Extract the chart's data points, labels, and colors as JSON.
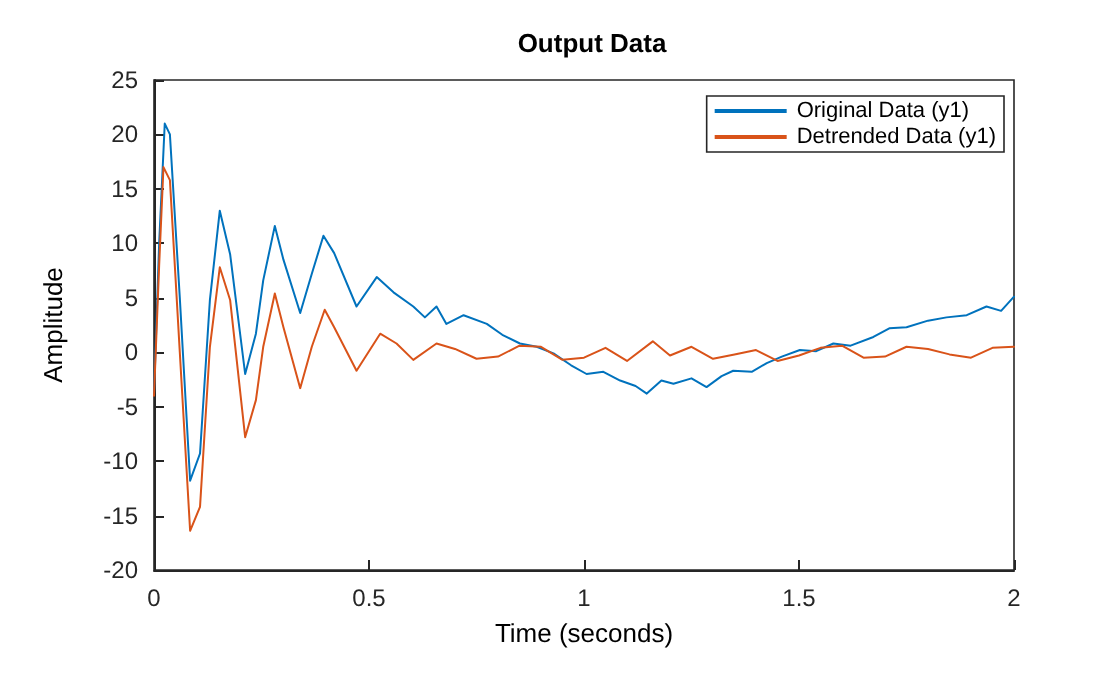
{
  "chart_data": {
    "type": "line",
    "title": "Output Data",
    "xlabel": "Time (seconds)",
    "ylabel": "Amplitude",
    "xlim": [
      0,
      2
    ],
    "xticks": [
      0,
      0.5,
      1,
      1.5,
      2
    ],
    "ylim": [
      -20,
      25
    ],
    "yticks": [
      -20,
      -15,
      -10,
      -5,
      0,
      5,
      10,
      15,
      20,
      25
    ],
    "grid": false,
    "legend": "top right",
    "marker": "none",
    "line_style": "solid",
    "series": [
      {
        "name": "Original Data (y1)",
        "color": "#0072bd",
        "x": [
          0,
          0.012,
          0.025,
          0.037,
          0.06,
          0.084,
          0.107,
          0.13,
          0.153,
          0.177,
          0.212,
          0.237,
          0.254,
          0.281,
          0.301,
          0.34,
          0.367,
          0.394,
          0.419,
          0.471,
          0.518,
          0.557,
          0.603,
          0.63,
          0.657,
          0.68,
          0.72,
          0.774,
          0.81,
          0.851,
          0.89,
          0.929,
          0.97,
          1.006,
          1.045,
          1.084,
          1.12,
          1.146,
          1.18,
          1.208,
          1.25,
          1.285,
          1.32,
          1.347,
          1.39,
          1.425,
          1.46,
          1.502,
          1.54,
          1.58,
          1.62,
          1.673,
          1.71,
          1.75,
          1.8,
          1.843,
          1.89,
          1.936,
          1.97,
          2.0
        ],
        "values": [
          -3.9,
          10,
          21,
          20,
          5,
          -11.8,
          -9.3,
          4.8,
          13,
          9,
          -2,
          1.7,
          6.6,
          11.6,
          8.5,
          3.6,
          7.2,
          10.7,
          9.1,
          4.2,
          6.9,
          5.5,
          4.2,
          3.2,
          4.2,
          2.6,
          3.4,
          2.6,
          1.6,
          0.8,
          0.5,
          -0.1,
          -1.2,
          -2,
          -1.8,
          -2.6,
          -3.1,
          -3.8,
          -2.6,
          -2.9,
          -2.4,
          -3.2,
          -2.2,
          -1.7,
          -1.8,
          -1,
          -0.4,
          0.2,
          0.1,
          0.8,
          0.6,
          1.4,
          2.2,
          2.3,
          2.9,
          3.2,
          3.4,
          4.2,
          3.8,
          5.1
        ]
      },
      {
        "name": "Detrended Data (y1)",
        "color": "#d95319",
        "x": [
          0,
          0.012,
          0.022,
          0.037,
          0.06,
          0.084,
          0.107,
          0.13,
          0.153,
          0.177,
          0.212,
          0.237,
          0.254,
          0.281,
          0.301,
          0.34,
          0.367,
          0.397,
          0.419,
          0.471,
          0.526,
          0.564,
          0.603,
          0.657,
          0.7,
          0.75,
          0.8,
          0.85,
          0.9,
          0.95,
          1.0,
          1.05,
          1.1,
          1.16,
          1.2,
          1.25,
          1.3,
          1.35,
          1.4,
          1.45,
          1.5,
          1.55,
          1.6,
          1.65,
          1.7,
          1.75,
          1.8,
          1.85,
          1.9,
          1.95,
          2.0
        ],
        "values": [
          -4,
          8,
          17,
          15.8,
          0,
          -16.4,
          -14.2,
          0.5,
          7.8,
          4.8,
          -7.8,
          -4.4,
          0.5,
          5.4,
          2.3,
          -3.3,
          0.5,
          3.9,
          2.3,
          -1.7,
          1.7,
          0.8,
          -0.7,
          0.8,
          0.3,
          -0.6,
          -0.4,
          0.6,
          0.5,
          -0.7,
          -0.5,
          0.4,
          -0.8,
          1,
          -0.3,
          0.5,
          -0.6,
          -0.2,
          0.2,
          -0.8,
          -0.3,
          0.4,
          0.6,
          -0.5,
          -0.4,
          0.5,
          0.3,
          -0.2,
          -0.5,
          0.4,
          0.5
        ]
      }
    ]
  }
}
